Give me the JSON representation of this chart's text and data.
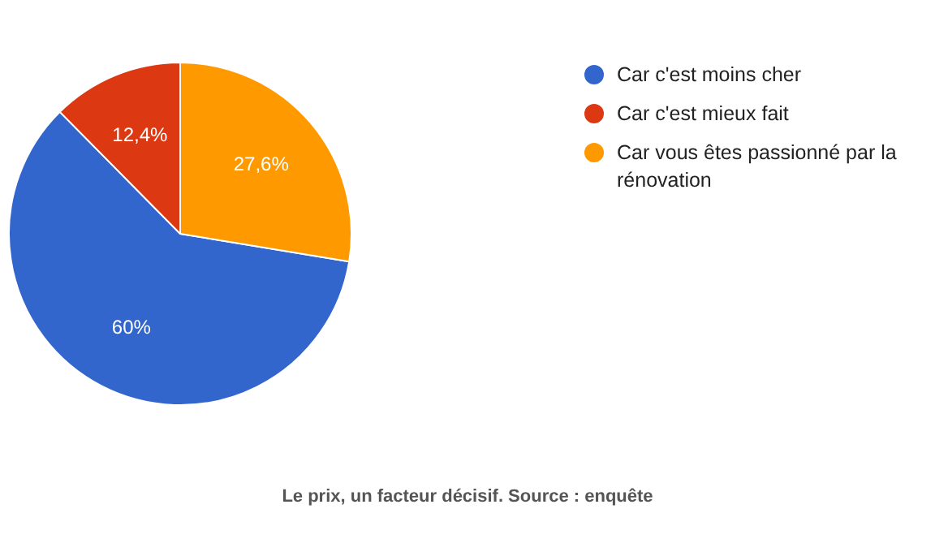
{
  "chart_data": {
    "type": "pie",
    "categories": [
      "Car c'est moins cher",
      "Car c'est mieux fait",
      "Car vous êtes passionné par la rénovation"
    ],
    "values": [
      60,
      12.4,
      27.6
    ],
    "colors": [
      "#3366cc",
      "#dc3912",
      "#ff9900"
    ],
    "value_labels": [
      "60%",
      "12,4%",
      "27,6%"
    ],
    "legend": "right",
    "annotations": [
      "Le prix, un facteur décisif. Source : enquête"
    ]
  }
}
